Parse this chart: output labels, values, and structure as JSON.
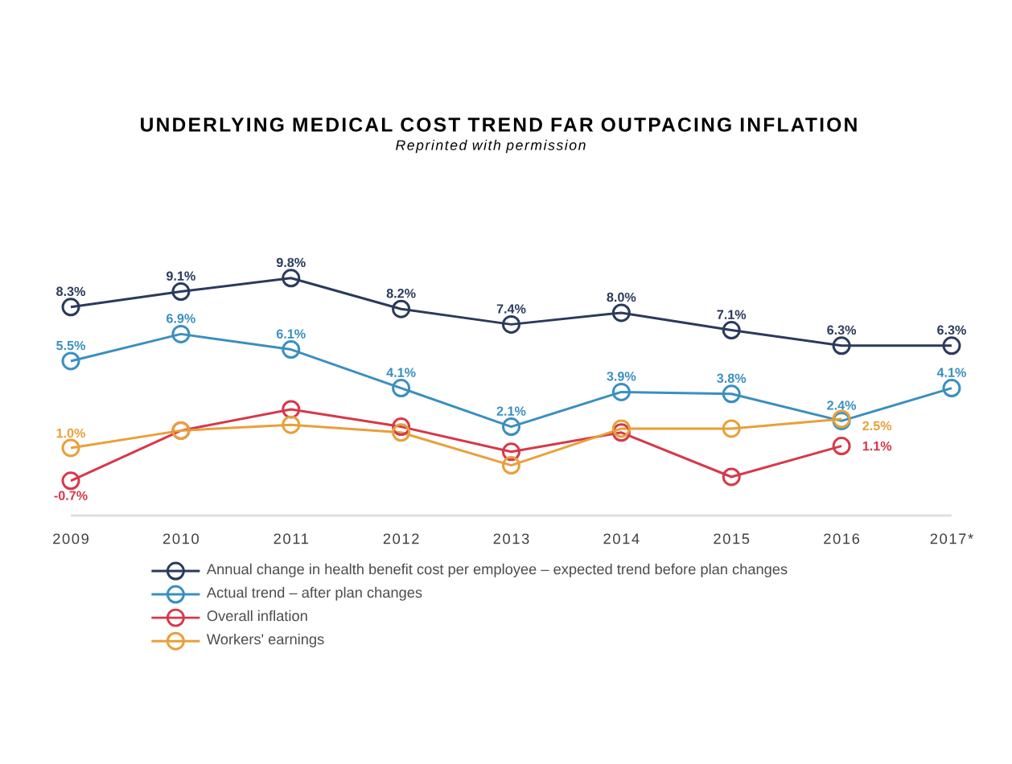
{
  "chart_data": {
    "type": "line",
    "title": "UNDERLYING MEDICAL COST TREND FAR OUTPACING INFLATION",
    "subtitle": "Reprinted with permission",
    "categories": [
      "2009",
      "2010",
      "2011",
      "2012",
      "2013",
      "2014",
      "2015",
      "2016",
      "2017*"
    ],
    "tick_labels": "x",
    "grid": false,
    "legend": "bottom",
    "marker": "circle",
    "line_style": "solid",
    "series": [
      {
        "name": "Annual change in health benefit cost per employee – expected trend before plan changes",
        "color": "#2b3a5c",
        "values": [
          8.3,
          9.1,
          9.8,
          8.2,
          7.4,
          8.0,
          7.1,
          6.3,
          6.3
        ],
        "value_labels": [
          "8.3%",
          "9.1%",
          "9.8%",
          "8.2%",
          "7.4%",
          "8.0%",
          "7.1%",
          "6.3%",
          "6.3%"
        ]
      },
      {
        "name": "Actual trend – after plan changes",
        "color": "#3a8fc0",
        "values": [
          5.5,
          6.9,
          6.1,
          4.1,
          2.1,
          3.9,
          3.8,
          2.4,
          4.1
        ],
        "value_labels": [
          "5.5%",
          "6.9%",
          "6.1%",
          "4.1%",
          "2.1%",
          "3.9%",
          "3.8%",
          "2.4%",
          "4.1%"
        ]
      },
      {
        "name": "Overall inflation",
        "color": "#d7384a",
        "values": [
          -0.7,
          1.9,
          3.0,
          2.1,
          0.8,
          1.8,
          -0.5,
          1.1,
          null
        ],
        "value_labels": [
          "-0.7%",
          null,
          null,
          null,
          null,
          null,
          null,
          "1.1%",
          null
        ]
      },
      {
        "name": "Workers' earnings",
        "color": "#e8a03a",
        "values": [
          1.0,
          1.9,
          2.2,
          1.8,
          0.1,
          2.0,
          2.0,
          2.5,
          null
        ],
        "value_labels": [
          "1.0%",
          null,
          null,
          null,
          null,
          null,
          null,
          "2.5%",
          null
        ]
      }
    ]
  }
}
